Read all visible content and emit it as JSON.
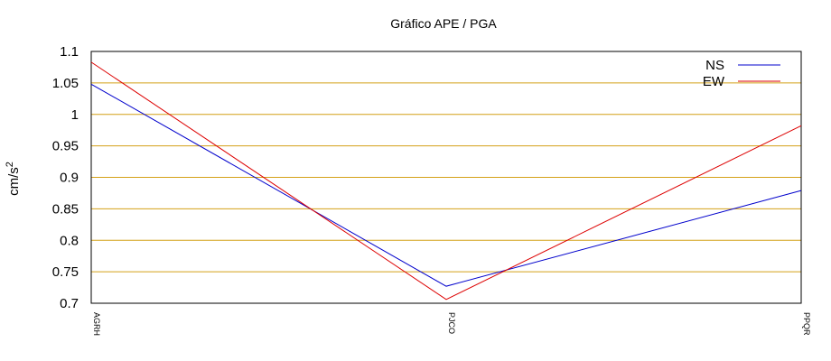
{
  "chart_data": {
    "type": "line",
    "title": "Gráfico  APE / PGA",
    "xlabel": "",
    "ylabel": "cm/s",
    "ylabel_superscript": "2",
    "categories": [
      "AGRH",
      "PJCO",
      "PPQR"
    ],
    "ylim": [
      0.7,
      1.1
    ],
    "yticks": [
      "0.7",
      "0.75",
      "0.8",
      "0.85",
      "0.9",
      "0.95",
      "1",
      "1.05",
      "1.1"
    ],
    "grid": true,
    "legend_position": "top-right",
    "series": [
      {
        "name": "NS",
        "color": "#0000cc",
        "values": [
          1.048,
          0.727,
          0.879
        ]
      },
      {
        "name": "EW",
        "color": "#dd0000",
        "values": [
          1.083,
          0.706,
          0.982
        ]
      }
    ]
  },
  "style": {
    "grid_color": "#d4a017",
    "axis_color": "#000000"
  }
}
